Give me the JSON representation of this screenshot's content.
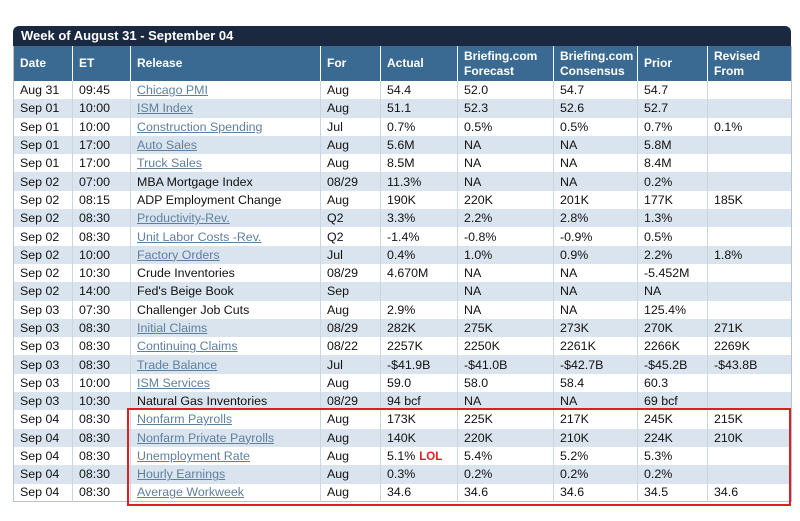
{
  "title": "Week of August 31 - September 04",
  "columns": [
    "Date",
    "ET",
    "Release",
    "For",
    "Actual",
    "Briefing.com Forecast",
    "Briefing.com Consensus",
    "Prior",
    "Revised From"
  ],
  "colors": {
    "title_bar": "#1a2940",
    "header": "#3a6a91",
    "row_alt": "#d9e4ef",
    "link": "#5f7f9e",
    "highlight_border": "#dd1f1f",
    "annotation_red": "#e02020"
  },
  "rows": [
    {
      "date": "Aug 31",
      "et": "09:45",
      "release": "Chicago PMI",
      "link": true,
      "for": "Aug",
      "actual": "54.4",
      "forecast": "52.0",
      "consensus": "54.7",
      "prior": "54.7",
      "revised": ""
    },
    {
      "date": "Sep 01",
      "et": "10:00",
      "release": "ISM Index",
      "link": true,
      "for": "Aug",
      "actual": "51.1",
      "forecast": "52.3",
      "consensus": "52.6",
      "prior": "52.7",
      "revised": ""
    },
    {
      "date": "Sep 01",
      "et": "10:00",
      "release": "Construction Spending",
      "link": true,
      "for": "Jul",
      "actual": "0.7%",
      "forecast": "0.5%",
      "consensus": "0.5%",
      "prior": "0.7%",
      "revised": "0.1%"
    },
    {
      "date": "Sep 01",
      "et": "17:00",
      "release": "Auto Sales",
      "link": true,
      "for": "Aug",
      "actual": "5.6M",
      "forecast": "NA",
      "consensus": "NA",
      "prior": "5.8M",
      "revised": ""
    },
    {
      "date": "Sep 01",
      "et": "17:00",
      "release": "Truck Sales",
      "link": true,
      "for": "Aug",
      "actual": "8.5M",
      "forecast": "NA",
      "consensus": "NA",
      "prior": "8.4M",
      "revised": ""
    },
    {
      "date": "Sep 02",
      "et": "07:00",
      "release": "MBA Mortgage Index",
      "link": false,
      "for": "08/29",
      "actual": "11.3%",
      "forecast": "NA",
      "consensus": "NA",
      "prior": "0.2%",
      "revised": ""
    },
    {
      "date": "Sep 02",
      "et": "08:15",
      "release": "ADP Employment Change",
      "link": false,
      "for": "Aug",
      "actual": "190K",
      "forecast": "220K",
      "consensus": "201K",
      "prior": "177K",
      "revised": "185K"
    },
    {
      "date": "Sep 02",
      "et": "08:30",
      "release": "Productivity-Rev.",
      "link": true,
      "for": "Q2",
      "actual": "3.3%",
      "forecast": "2.2%",
      "consensus": "2.8%",
      "prior": "1.3%",
      "revised": ""
    },
    {
      "date": "Sep 02",
      "et": "08:30",
      "release": "Unit Labor Costs -Rev.",
      "link": true,
      "for": "Q2",
      "actual": "-1.4%",
      "forecast": "-0.8%",
      "consensus": "-0.9%",
      "prior": "0.5%",
      "revised": ""
    },
    {
      "date": "Sep 02",
      "et": "10:00",
      "release": "Factory Orders",
      "link": true,
      "for": "Jul",
      "actual": "0.4%",
      "forecast": "1.0%",
      "consensus": "0.9%",
      "prior": "2.2%",
      "revised": "1.8%"
    },
    {
      "date": "Sep 02",
      "et": "10:30",
      "release": "Crude Inventories",
      "link": false,
      "for": "08/29",
      "actual": "4.670M",
      "forecast": "NA",
      "consensus": "NA",
      "prior": "-5.452M",
      "revised": ""
    },
    {
      "date": "Sep 02",
      "et": "14:00",
      "release": "Fed's Beige Book",
      "link": false,
      "for": "Sep",
      "actual": "",
      "forecast": "NA",
      "consensus": "NA",
      "prior": "NA",
      "revised": ""
    },
    {
      "date": "Sep 03",
      "et": "07:30",
      "release": "Challenger Job Cuts",
      "link": false,
      "for": "Aug",
      "actual": "2.9%",
      "forecast": "NA",
      "consensus": "NA",
      "prior": "125.4%",
      "revised": ""
    },
    {
      "date": "Sep 03",
      "et": "08:30",
      "release": "Initial Claims",
      "link": true,
      "for": "08/29",
      "actual": "282K",
      "forecast": "275K",
      "consensus": "273K",
      "prior": "270K",
      "revised": "271K"
    },
    {
      "date": "Sep 03",
      "et": "08:30",
      "release": "Continuing Claims",
      "link": true,
      "for": "08/22",
      "actual": "2257K",
      "forecast": "2250K",
      "consensus": "2261K",
      "prior": "2266K",
      "revised": "2269K"
    },
    {
      "date": "Sep 03",
      "et": "08:30",
      "release": "Trade Balance",
      "link": true,
      "for": "Jul",
      "actual": "-$41.9B",
      "forecast": "-$41.0B",
      "consensus": "-$42.7B",
      "prior": "-$45.2B",
      "revised": "-$43.8B"
    },
    {
      "date": "Sep 03",
      "et": "10:00",
      "release": "ISM Services",
      "link": true,
      "for": "Aug",
      "actual": "59.0",
      "forecast": "58.0",
      "consensus": "58.4",
      "prior": "60.3",
      "revised": ""
    },
    {
      "date": "Sep 03",
      "et": "10:30",
      "release": "Natural Gas Inventories",
      "link": false,
      "for": "08/29",
      "actual": "94 bcf",
      "forecast": "NA",
      "consensus": "NA",
      "prior": "69 bcf",
      "revised": ""
    },
    {
      "date": "Sep 04",
      "et": "08:30",
      "release": "Nonfarm Payrolls",
      "link": true,
      "for": "Aug",
      "actual": "173K",
      "forecast": "225K",
      "consensus": "217K",
      "prior": "245K",
      "revised": "215K"
    },
    {
      "date": "Sep 04",
      "et": "08:30",
      "release": "Nonfarm Private Payrolls",
      "link": true,
      "for": "Aug",
      "actual": "140K",
      "forecast": "220K",
      "consensus": "210K",
      "prior": "224K",
      "revised": "210K"
    },
    {
      "date": "Sep 04",
      "et": "08:30",
      "release": "Unemployment Rate",
      "link": true,
      "for": "Aug",
      "actual": "5.1%",
      "annotation": "LOL",
      "forecast": "5.4%",
      "consensus": "5.2%",
      "prior": "5.3%",
      "revised": ""
    },
    {
      "date": "Sep 04",
      "et": "08:30",
      "release": "Hourly Earnings",
      "link": true,
      "for": "Aug",
      "actual": "0.3%",
      "forecast": "0.2%",
      "consensus": "0.2%",
      "prior": "0.2%",
      "revised": ""
    },
    {
      "date": "Sep 04",
      "et": "08:30",
      "release": "Average Workweek",
      "link": true,
      "for": "Aug",
      "actual": "34.6",
      "forecast": "34.6",
      "consensus": "34.6",
      "prior": "34.5",
      "revised": "34.6"
    }
  ]
}
